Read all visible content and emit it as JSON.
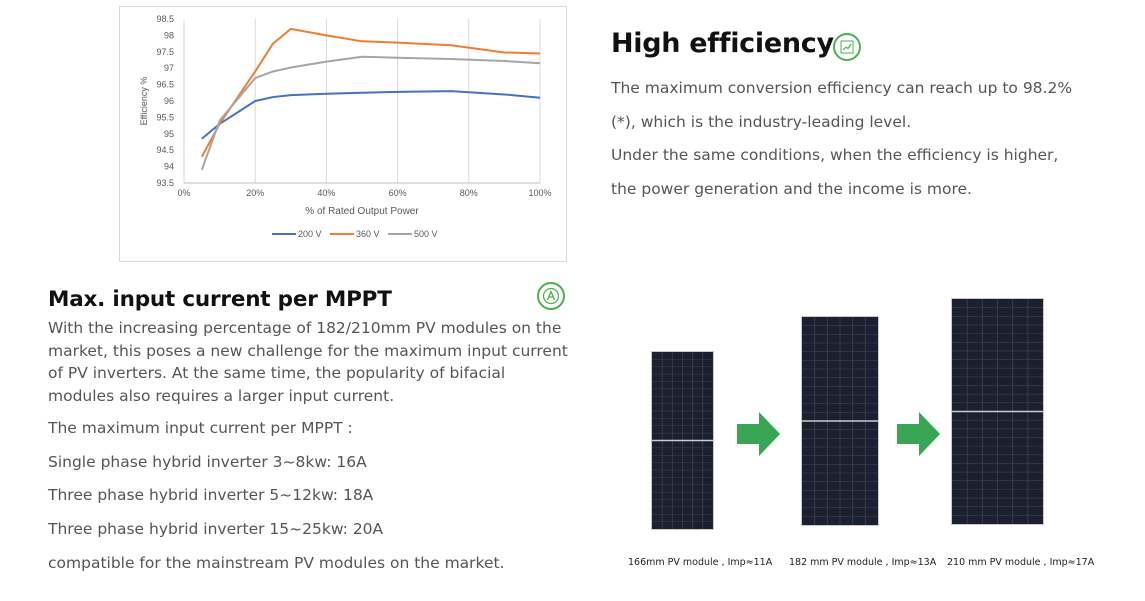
{
  "chart_data": {
    "type": "line",
    "x": [
      5,
      10,
      20,
      25,
      30,
      40,
      50,
      60,
      75,
      90,
      100
    ],
    "series": [
      {
        "name": "200 V",
        "color": "#4472c4",
        "values": [
          94.85,
          95.3,
          96.0,
          96.12,
          96.18,
          96.22,
          96.25,
          96.28,
          96.3,
          96.2,
          96.1
        ]
      },
      {
        "name": "360 V",
        "color": "#ed7d31",
        "values": [
          94.3,
          95.3,
          96.9,
          97.75,
          98.2,
          98.0,
          97.82,
          97.78,
          97.7,
          97.48,
          97.45
        ]
      },
      {
        "name": "500 V",
        "color": "#a5a5a5",
        "values": [
          93.9,
          95.4,
          96.7,
          96.9,
          97.02,
          97.2,
          97.35,
          97.32,
          97.28,
          97.22,
          97.15
        ]
      }
    ],
    "xlabel": "% of Rated Output Power",
    "ylabel": "Efficiency %",
    "xlim": [
      0,
      100
    ],
    "ylim": [
      93.5,
      98.5
    ],
    "x_ticks": [
      "0%",
      "20%",
      "40%",
      "60%",
      "80%",
      "100%"
    ],
    "y_ticks": [
      "98.5",
      "98",
      "97.5",
      "97",
      "96.5",
      "96",
      "95.5",
      "95",
      "94.5",
      "94",
      "93.5"
    ],
    "legend": "bottom",
    "grid": "vertical"
  },
  "high_efficiency": {
    "title": "High efficiency",
    "icon": "chart-icon",
    "accent": "#4caf50",
    "lines": [
      "The maximum conversion efficiency can reach up to 98.2%",
      "(*), which is the industry-leading level.",
      "Under the same conditions, when the efficiency is higher,",
      "the power generation and the income is more."
    ]
  },
  "mppt": {
    "title": "Max. input current per MPPT",
    "icon": "ampere-icon",
    "paragraph": "With the increasing percentage of 182/210mm PV modules on the market, this poses a new challenge for the maximum input current of PV inverters. At the same time, the popularity of bifacial modules also requires a larger input current.",
    "heading": "The maximum input current per MPPT :",
    "items": [
      "Single phase hybrid inverter 3~8kw: 16A",
      "Three phase hybrid inverter 5~12kw: 18A",
      "Three phase hybrid inverter 15~25kw: 20A"
    ],
    "footer": "compatible for the mainstream PV modules on the market."
  },
  "modules": [
    {
      "caption": "166mm PV module ,   Imp≈11A"
    },
    {
      "caption": "182 mm PV module ,   Imp≈13A"
    },
    {
      "caption": "210 mm PV module ,   Imp≈17A"
    }
  ],
  "arrow_color": "#3aa655"
}
